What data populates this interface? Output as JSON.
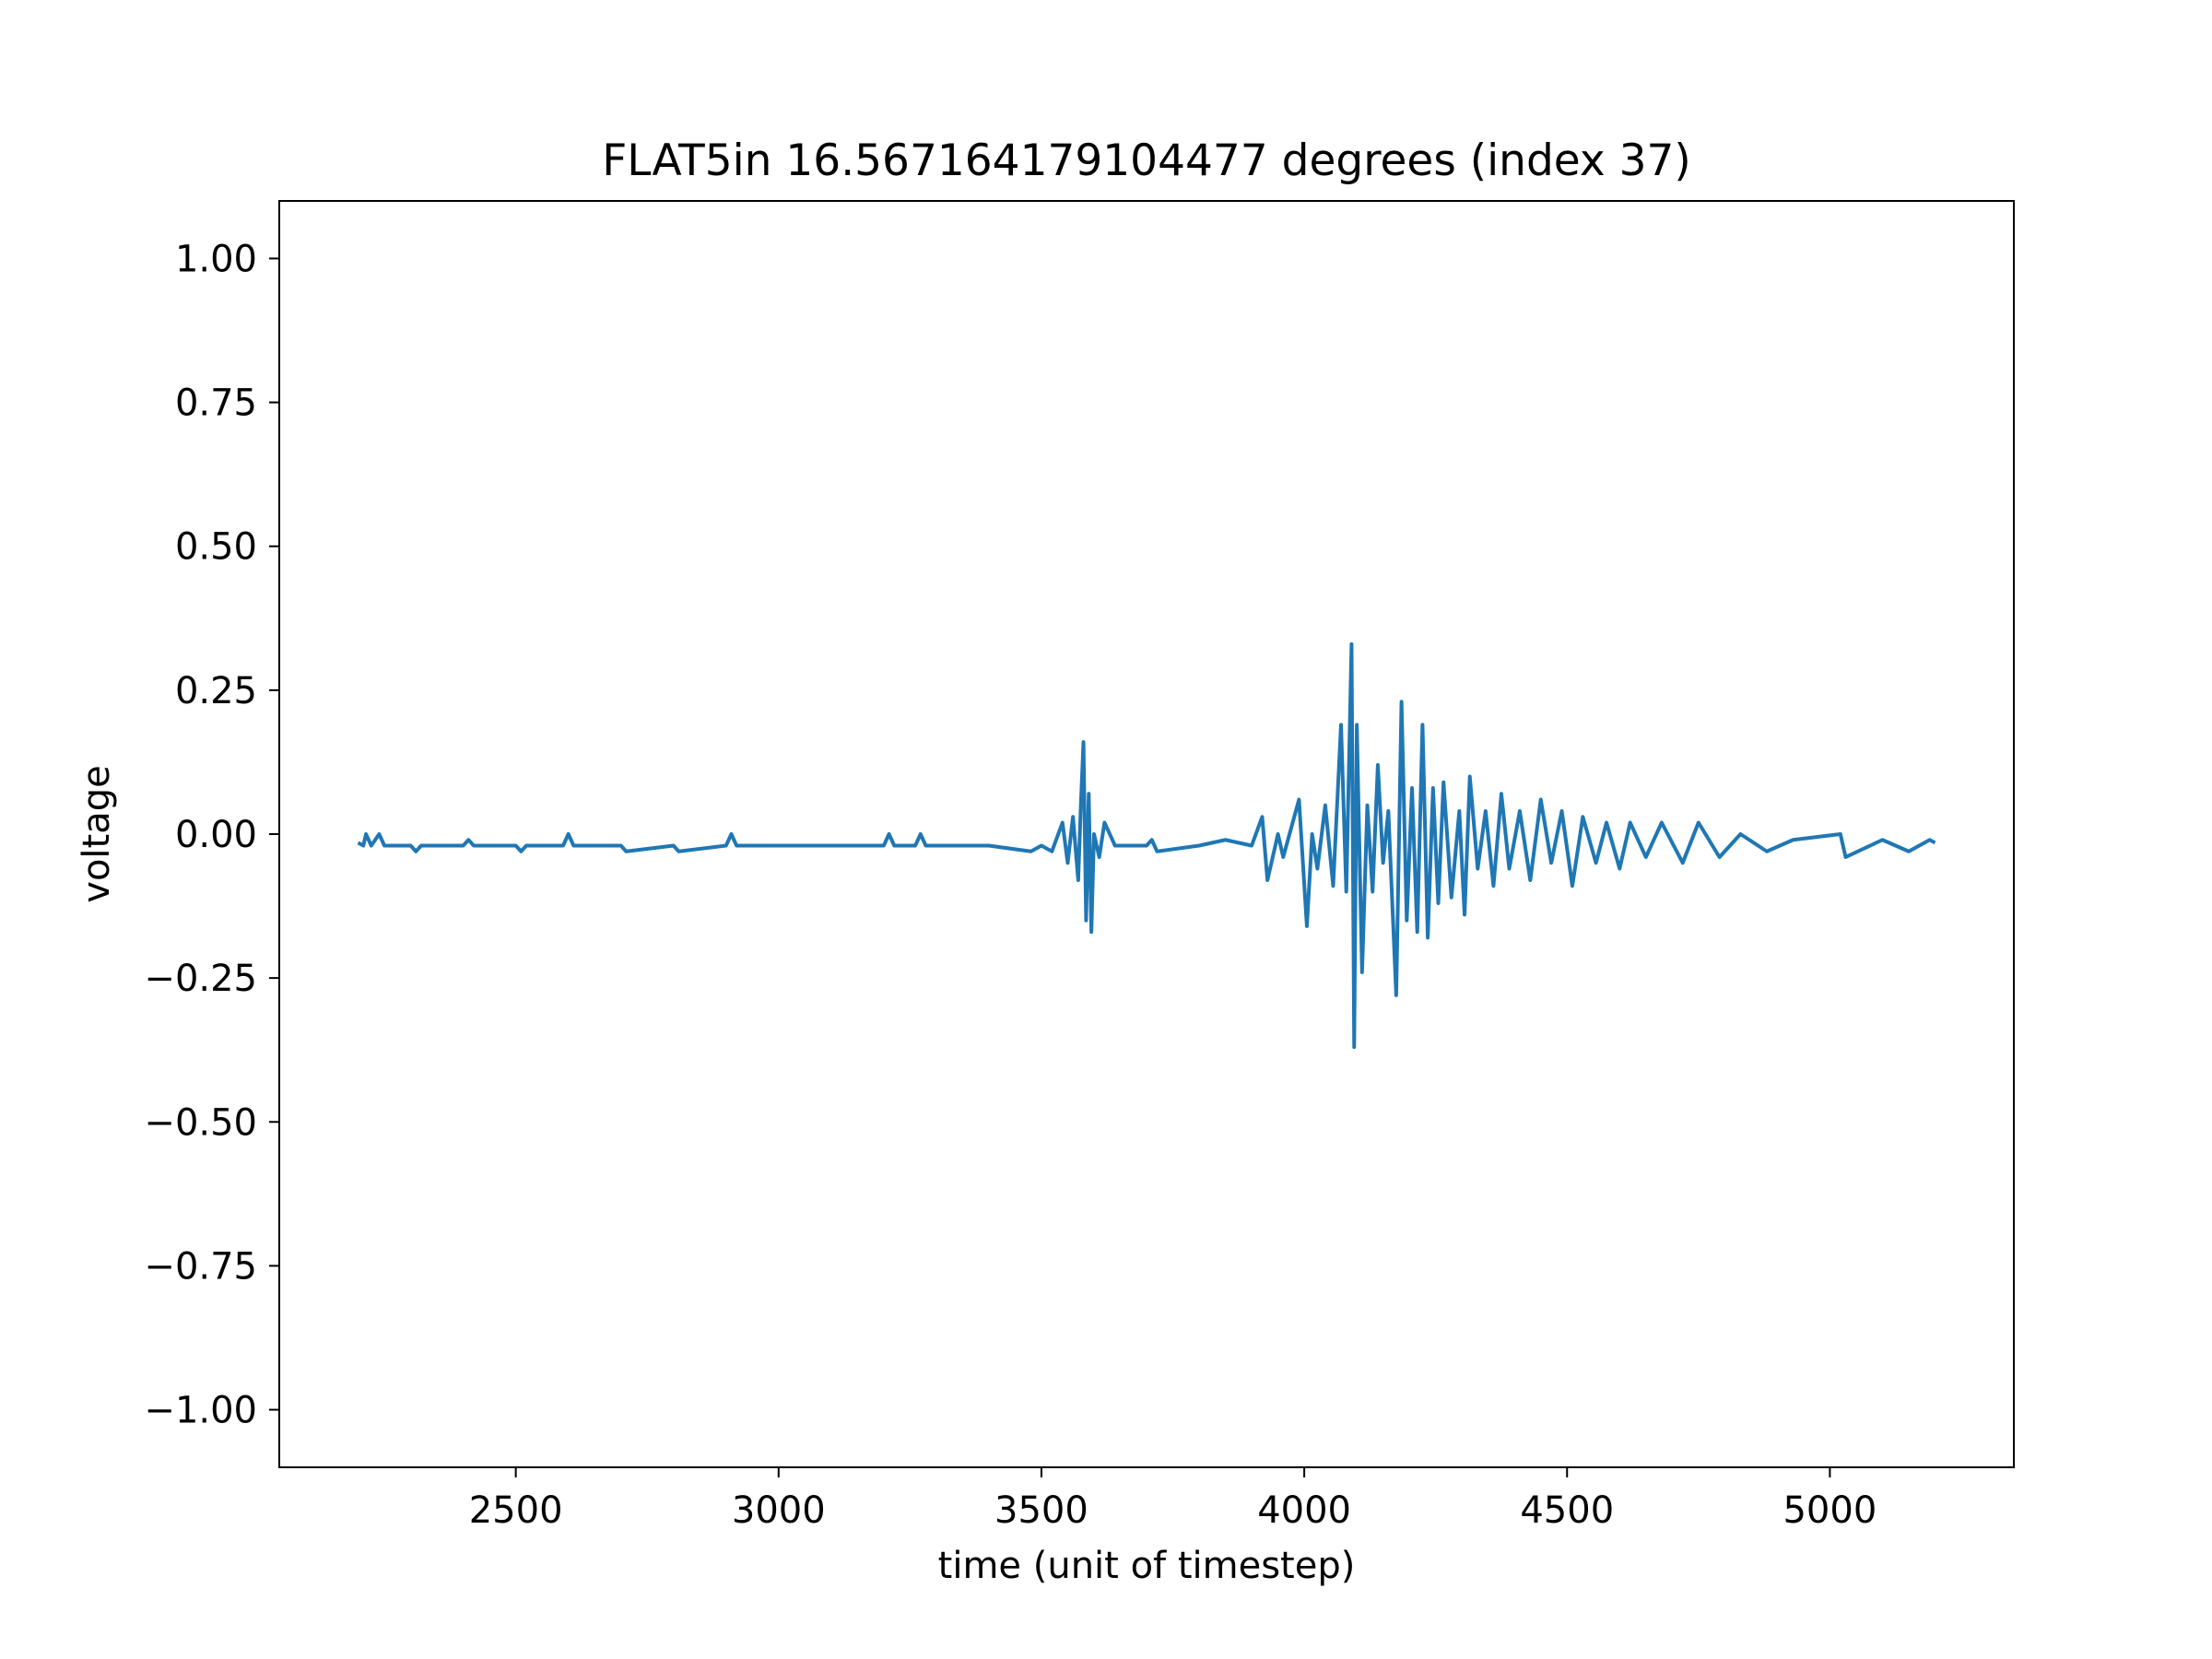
{
  "chart_data": {
    "type": "line",
    "title": "FLAT5in 16.567164179104477 degrees (index 37)",
    "xlabel": "time (unit of timestep)",
    "ylabel": "voltage",
    "color": "#1f77b4",
    "x": [
      2200,
      2210,
      2215,
      2225,
      2240,
      2250,
      2300,
      2310,
      2320,
      2400,
      2410,
      2420,
      2500,
      2510,
      2520,
      2590,
      2600,
      2610,
      2700,
      2710,
      2800,
      2810,
      2900,
      2910,
      2920,
      3000,
      3100,
      3200,
      3210,
      3220,
      3260,
      3270,
      3280,
      3400,
      3480,
      3500,
      3520,
      3540,
      3550,
      3560,
      3570,
      3575,
      3580,
      3585,
      3590,
      3595,
      3600,
      3610,
      3620,
      3640,
      3700,
      3710,
      3720,
      3800,
      3850,
      3900,
      3920,
      3930,
      3950,
      3960,
      3990,
      4005,
      4015,
      4025,
      4040,
      4055,
      4070,
      4080,
      4090,
      4095,
      4100,
      4110,
      4120,
      4130,
      4140,
      4150,
      4160,
      4175,
      4185,
      4195,
      4205,
      4215,
      4225,
      4235,
      4245,
      4255,
      4265,
      4280,
      4295,
      4305,
      4315,
      4330,
      4345,
      4360,
      4375,
      4390,
      4410,
      4430,
      4450,
      4470,
      4490,
      4510,
      4530,
      4555,
      4575,
      4600,
      4620,
      4650,
      4680,
      4720,
      4750,
      4790,
      4830,
      4880,
      4930,
      5020,
      5030,
      5100,
      5150,
      5190,
      5200
    ],
    "values": [
      -0.015,
      -0.02,
      0.0,
      -0.02,
      0.0,
      -0.02,
      -0.02,
      -0.03,
      -0.02,
      -0.02,
      -0.01,
      -0.02,
      -0.02,
      -0.03,
      -0.02,
      -0.02,
      0.0,
      -0.02,
      -0.02,
      -0.03,
      -0.02,
      -0.03,
      -0.02,
      0.0,
      -0.02,
      -0.02,
      -0.02,
      -0.02,
      0.0,
      -0.02,
      -0.02,
      0.0,
      -0.02,
      -0.02,
      -0.03,
      -0.02,
      -0.03,
      0.02,
      -0.05,
      0.03,
      -0.08,
      0.05,
      0.16,
      -0.15,
      0.07,
      -0.17,
      0.0,
      -0.04,
      0.02,
      -0.02,
      -0.02,
      -0.01,
      -0.03,
      -0.02,
      -0.01,
      -0.02,
      0.03,
      -0.08,
      0.0,
      -0.04,
      0.06,
      -0.16,
      0.0,
      -0.06,
      0.05,
      -0.09,
      0.19,
      -0.1,
      0.33,
      -0.37,
      0.19,
      -0.24,
      0.05,
      -0.1,
      0.12,
      -0.05,
      0.04,
      -0.28,
      0.23,
      -0.15,
      0.08,
      -0.17,
      0.19,
      -0.18,
      0.08,
      -0.12,
      0.09,
      -0.11,
      0.04,
      -0.14,
      0.1,
      -0.06,
      0.04,
      -0.09,
      0.07,
      -0.06,
      0.04,
      -0.08,
      0.06,
      -0.05,
      0.04,
      -0.09,
      0.03,
      -0.05,
      0.02,
      -0.06,
      0.02,
      -0.04,
      0.02,
      -0.05,
      0.02,
      -0.04,
      0.0,
      -0.03,
      -0.01,
      0.0,
      -0.04,
      -0.01,
      -0.03,
      -0.01,
      -0.015
    ],
    "xlim": [
      2050,
      5350
    ],
    "ylim": [
      -1.1,
      1.1
    ],
    "xticks": [
      2500,
      3000,
      3500,
      4000,
      4500,
      5000
    ],
    "yticks": [
      {
        "value": -1,
        "label": "−1.00"
      },
      {
        "value": -0.75,
        "label": "−0.75"
      },
      {
        "value": -0.5,
        "label": "−0.50"
      },
      {
        "value": -0.25,
        "label": "−0.25"
      },
      {
        "value": 0,
        "label": "0.00"
      },
      {
        "value": 0.25,
        "label": "0.25"
      },
      {
        "value": 0.5,
        "label": "0.50"
      },
      {
        "value": 0.75,
        "label": "0.75"
      },
      {
        "value": 1,
        "label": "1.00"
      }
    ],
    "grid": false
  }
}
